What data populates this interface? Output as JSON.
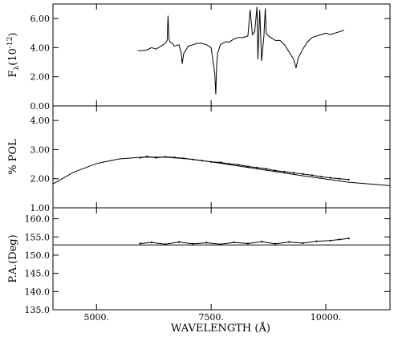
{
  "chart_data": {
    "type": "line",
    "xlabel": "WAVELENGTH (Å)",
    "xlim": [
      4050,
      11400
    ],
    "x_tick_labels": [
      {
        "value": 5000,
        "label": "5000."
      },
      {
        "value": 7500,
        "label": "7500."
      },
      {
        "value": 10000,
        "label": "10000."
      }
    ],
    "panels": [
      {
        "id": "flux",
        "ylabel": "F_λ (10^-12)",
        "ylabel_main": "F",
        "ylabel_sub": "λ",
        "ylabel_paren": "(10",
        "ylabel_exp": "-12",
        "ylabel_close": ")",
        "ylim": [
          0,
          7.0
        ],
        "y_ticks": [
          {
            "value": 0,
            "label": "0.00"
          },
          {
            "value": 2,
            "label": "2.00"
          },
          {
            "value": 4,
            "label": "4.00"
          },
          {
            "value": 6,
            "label": "6.00"
          }
        ],
        "series": [
          {
            "x": [
              5900,
              6000,
              6100,
              6200,
              6300,
              6400,
              6500,
              6540,
              6560,
              6580,
              6600,
              6650,
              6700,
              6800,
              6850,
              6870,
              6900,
              7000,
              7100,
              7200,
              7300,
              7400,
              7500,
              7580,
              7600,
              7620,
              7640,
              7700,
              7800,
              7900,
              8000,
              8100,
              8200,
              8300,
              8350,
              8400,
              8450,
              8500,
              8520,
              8540,
              8560,
              8600,
              8650,
              8680,
              8700,
              8750,
              8800,
              8900,
              9000,
              9100,
              9200,
              9300,
              9350,
              9400,
              9500,
              9600,
              9700,
              9800,
              9900,
              10000,
              10100,
              10200,
              10300,
              10400
            ],
            "y": [
              3.8,
              3.8,
              3.85,
              4.0,
              3.9,
              4.1,
              4.3,
              4.5,
              6.2,
              4.6,
              4.4,
              4.3,
              4.1,
              4.2,
              3.6,
              2.9,
              3.6,
              4.1,
              4.2,
              4.3,
              4.3,
              4.2,
              4.0,
              2.2,
              0.8,
              2.8,
              3.6,
              4.2,
              4.4,
              4.4,
              4.6,
              4.7,
              4.7,
              4.8,
              6.6,
              4.9,
              5.1,
              6.8,
              3.2,
              5.0,
              6.6,
              3.1,
              4.8,
              6.7,
              5.0,
              4.8,
              4.7,
              4.5,
              4.5,
              4.2,
              3.7,
              3.2,
              2.6,
              3.3,
              3.9,
              4.4,
              4.7,
              4.8,
              4.9,
              5.0,
              4.9,
              5.0,
              5.1,
              5.2
            ]
          }
        ]
      },
      {
        "id": "polarization",
        "ylabel": "% POL",
        "ylim": [
          1.0,
          4.5
        ],
        "y_ticks": [
          {
            "value": 1,
            "label": "1.00"
          },
          {
            "value": 2,
            "label": "2.00"
          },
          {
            "value": 3,
            "label": "3.00"
          },
          {
            "value": 4,
            "label": "4.00"
          }
        ],
        "series": [
          {
            "x": [
              4050,
              4500,
              5000,
              5500,
              6000,
              6500,
              7000,
              7500,
              8000,
              8500,
              9000,
              9500,
              10000,
              10500,
              11400
            ],
            "y": [
              1.82,
              2.22,
              2.52,
              2.68,
              2.74,
              2.74,
              2.68,
              2.58,
              2.46,
              2.34,
              2.22,
              2.1,
              1.99,
              1.88,
              1.76
            ]
          },
          {
            "x": [
              5950,
              6100,
              6300,
              6500,
              6700,
              6900,
              7100,
              7300,
              7500,
              7700,
              7900,
              8100,
              8300,
              8500,
              8700,
              8900,
              9100,
              9300,
              9500,
              9700,
              9900,
              10100,
              10300,
              10500
            ],
            "y": [
              2.72,
              2.76,
              2.72,
              2.75,
              2.73,
              2.7,
              2.66,
              2.62,
              2.58,
              2.56,
              2.51,
              2.48,
              2.42,
              2.38,
              2.34,
              2.28,
              2.24,
              2.2,
              2.16,
              2.12,
              2.07,
              2.03,
              2.0,
              1.97
            ]
          }
        ]
      },
      {
        "id": "position_angle",
        "ylabel": "P.A.(Deg)",
        "ylim": [
          135.0,
          163.0
        ],
        "y_ticks": [
          {
            "value": 135,
            "label": "135.0"
          },
          {
            "value": 140,
            "label": "140.0"
          },
          {
            "value": 145,
            "label": "145.0"
          },
          {
            "value": 150,
            "label": "150.0"
          },
          {
            "value": 155,
            "label": "155.0"
          },
          {
            "value": 160,
            "label": "160.0"
          }
        ],
        "series": [
          {
            "x": [
              4050,
              11400
            ],
            "y": [
              152.8,
              152.8
            ]
          },
          {
            "x": [
              5950,
              6200,
              6500,
              6800,
              7100,
              7400,
              7700,
              8000,
              8300,
              8600,
              8900,
              9200,
              9500,
              9800,
              10100,
              10300,
              10500
            ],
            "y": [
              153.2,
              153.5,
              153.0,
              153.6,
              153.1,
              153.4,
              153.0,
              153.5,
              153.2,
              153.7,
              153.1,
              153.6,
              153.3,
              153.8,
              154.0,
              154.3,
              154.6
            ]
          }
        ]
      }
    ]
  }
}
